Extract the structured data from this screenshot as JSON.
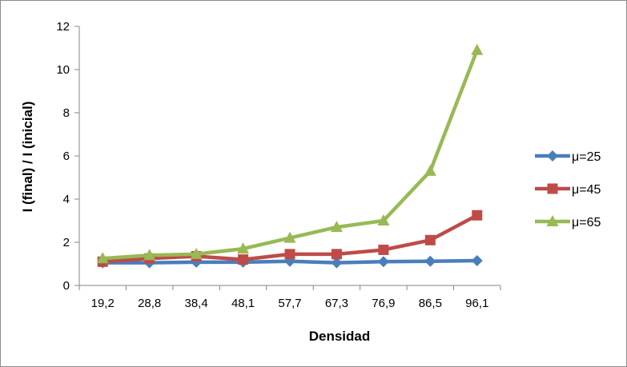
{
  "chart_data": {
    "type": "line",
    "title": "",
    "xlabel": "Densidad",
    "ylabel": "I (final) / I (inicial)",
    "categories": [
      "19,2",
      "28,8",
      "38,4",
      "48,1",
      "57,7",
      "67,3",
      "76,9",
      "86,5",
      "96,1"
    ],
    "ylim": [
      0,
      12
    ],
    "yticks": [
      0,
      2,
      4,
      6,
      8,
      10,
      12
    ],
    "grid": false,
    "legend_position": "right",
    "series": [
      {
        "name": "μ=25",
        "color": "#4a7ebb",
        "marker": "diamond",
        "values": [
          1.05,
          1.05,
          1.08,
          1.08,
          1.12,
          1.05,
          1.1,
          1.12,
          1.15
        ]
      },
      {
        "name": "μ=45",
        "color": "#be4b48",
        "marker": "square",
        "values": [
          1.1,
          1.25,
          1.35,
          1.2,
          1.45,
          1.45,
          1.65,
          2.1,
          3.25
        ]
      },
      {
        "name": "μ=65",
        "color": "#98b954",
        "marker": "triangle",
        "values": [
          1.25,
          1.4,
          1.45,
          1.7,
          2.2,
          2.7,
          3.0,
          5.3,
          10.9
        ]
      }
    ]
  }
}
